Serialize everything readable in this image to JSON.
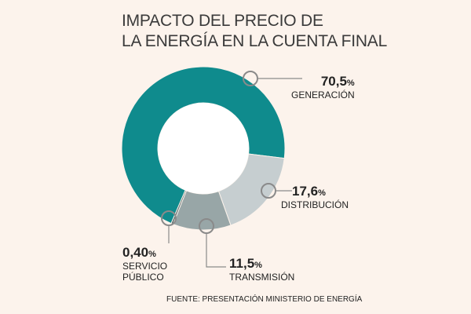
{
  "title": {
    "line1": "IMPACTO DEL PRECIO DE",
    "line2": "LA ENERGÍA EN LA CUENTA FINAL"
  },
  "source": "FUENTE: PRESENTACIÓN MINISTERIO DE ENERGÍA",
  "chart_data": {
    "type": "pie",
    "donut": true,
    "title": "IMPACTO DEL PRECIO DE LA ENERGÍA EN LA CUENTA FINAL",
    "slices": [
      {
        "category": "GENERACIÓN",
        "value": 70.5,
        "label": "70,5",
        "unit": "%",
        "color": "#0f8b8d"
      },
      {
        "category": "DISTRIBUCIÓN",
        "value": 17.6,
        "label": "17,6",
        "unit": "%",
        "color": "#c6ced0"
      },
      {
        "category": "TRANSMISIÓN",
        "value": 11.5,
        "label": "11,5",
        "unit": "%",
        "color": "#98a6a7"
      },
      {
        "category": "SERVICIO PÚBLICO",
        "category_lines": [
          "SERVICIO",
          "PÚBLICO"
        ],
        "value": 0.4,
        "label": "0,40",
        "unit": "%",
        "color": "#5f6f70"
      }
    ]
  }
}
